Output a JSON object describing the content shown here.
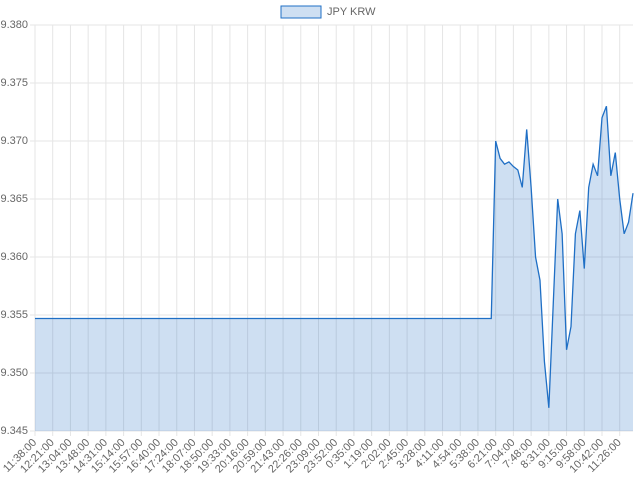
{
  "chart_data": {
    "type": "line",
    "series": [
      {
        "name": "JPY KRW",
        "color": "#1f6fc5",
        "fill": "rgba(31,111,197,0.22)",
        "values": [
          9.3547,
          9.3547,
          9.3547,
          9.3547,
          9.3547,
          9.3547,
          9.3547,
          9.3547,
          9.3547,
          9.3547,
          9.3547,
          9.3547,
          9.3547,
          9.3547,
          9.3547,
          9.3547,
          9.3547,
          9.3547,
          9.3547,
          9.3547,
          9.3547,
          9.3547,
          9.3547,
          9.3547,
          9.3547,
          9.3547,
          9.3547,
          9.3547,
          9.3547,
          9.3547,
          9.3547,
          9.3547,
          9.3547,
          9.3547,
          9.3547,
          9.3547,
          9.3547,
          9.3547,
          9.3547,
          9.3547,
          9.3547,
          9.3547,
          9.3547,
          9.3547,
          9.3547,
          9.3547,
          9.3547,
          9.3547,
          9.3547,
          9.3547,
          9.3547,
          9.3547,
          9.3547,
          9.3547,
          9.3547,
          9.3547,
          9.3547,
          9.3547,
          9.3547,
          9.3547,
          9.3547,
          9.3547,
          9.3547,
          9.3547,
          9.3547,
          9.3547,
          9.3547,
          9.3547,
          9.3547,
          9.3547,
          9.3547,
          9.3547,
          9.3547,
          9.3547,
          9.3547,
          9.3547,
          9.3547,
          9.3547,
          9.3547,
          9.3547,
          9.3547,
          9.3547,
          9.3547,
          9.3547,
          9.3547,
          9.3547,
          9.3547,
          9.3547,
          9.3547,
          9.3547,
          9.3547,
          9.3547,
          9.3547,
          9.3547,
          9.3547,
          9.3547,
          9.3547,
          9.3547,
          9.3547,
          9.3547,
          9.3547,
          9.3547,
          9.3547,
          9.3547,
          9.37,
          9.3685,
          9.368,
          9.3682,
          9.3678,
          9.3675,
          9.366,
          9.371,
          9.366,
          9.36,
          9.358,
          9.351,
          9.347,
          9.356,
          9.365,
          9.362,
          9.352,
          9.354,
          9.362,
          9.364,
          9.359,
          9.366,
          9.368,
          9.367,
          9.372,
          9.373,
          9.367,
          9.369,
          9.365,
          9.362,
          9.363,
          9.3655
        ]
      }
    ],
    "categories": [
      "11:38:00",
      null,
      null,
      null,
      "12:21:00",
      null,
      null,
      null,
      "13:04:00",
      null,
      null,
      null,
      "13:48:00",
      null,
      null,
      null,
      "14:31:00",
      null,
      null,
      null,
      "15:14:00",
      null,
      null,
      null,
      "15:57:00",
      null,
      null,
      null,
      "16:40:00",
      null,
      null,
      null,
      "17:24:00",
      null,
      null,
      null,
      "18:07:00",
      null,
      null,
      null,
      "18:50:00",
      null,
      null,
      null,
      "19:33:00",
      null,
      null,
      null,
      "20:16:00",
      null,
      null,
      null,
      "20:59:00",
      null,
      null,
      null,
      "21:43:00",
      null,
      null,
      null,
      "22:26:00",
      null,
      null,
      null,
      "23:09:00",
      null,
      null,
      null,
      "23:52:00",
      null,
      null,
      null,
      "0:35:00",
      null,
      null,
      null,
      "1:19:00",
      null,
      null,
      null,
      "2:02:00",
      null,
      null,
      null,
      "2:45:00",
      null,
      null,
      null,
      "3:28:00",
      null,
      null,
      null,
      "4:11:00",
      null,
      null,
      null,
      "4:54:00",
      null,
      null,
      null,
      "5:38:00",
      null,
      null,
      null,
      "6:21:00",
      null,
      null,
      null,
      "7:04:00",
      null,
      null,
      null,
      "7:48:00",
      null,
      null,
      null,
      "8:31:00",
      null,
      null,
      null,
      "9:15:00",
      null,
      null,
      null,
      "9:58:00",
      null,
      null,
      null,
      "10:42:00",
      null,
      null,
      null,
      "11:26:00",
      null,
      null,
      null
    ],
    "ylim": [
      9.345,
      9.38
    ],
    "yticks": [
      9.345,
      {
        "value": 9.35,
        "label": "9.350"
      },
      9.355,
      {
        "value": 9.36,
        "label": "9.360"
      },
      9.365,
      {
        "value": 9.37,
        "label": "9.370"
      },
      9.375,
      {
        "value": 9.38,
        "label": "9.380"
      }
    ],
    "grid": true,
    "legend": "top"
  }
}
